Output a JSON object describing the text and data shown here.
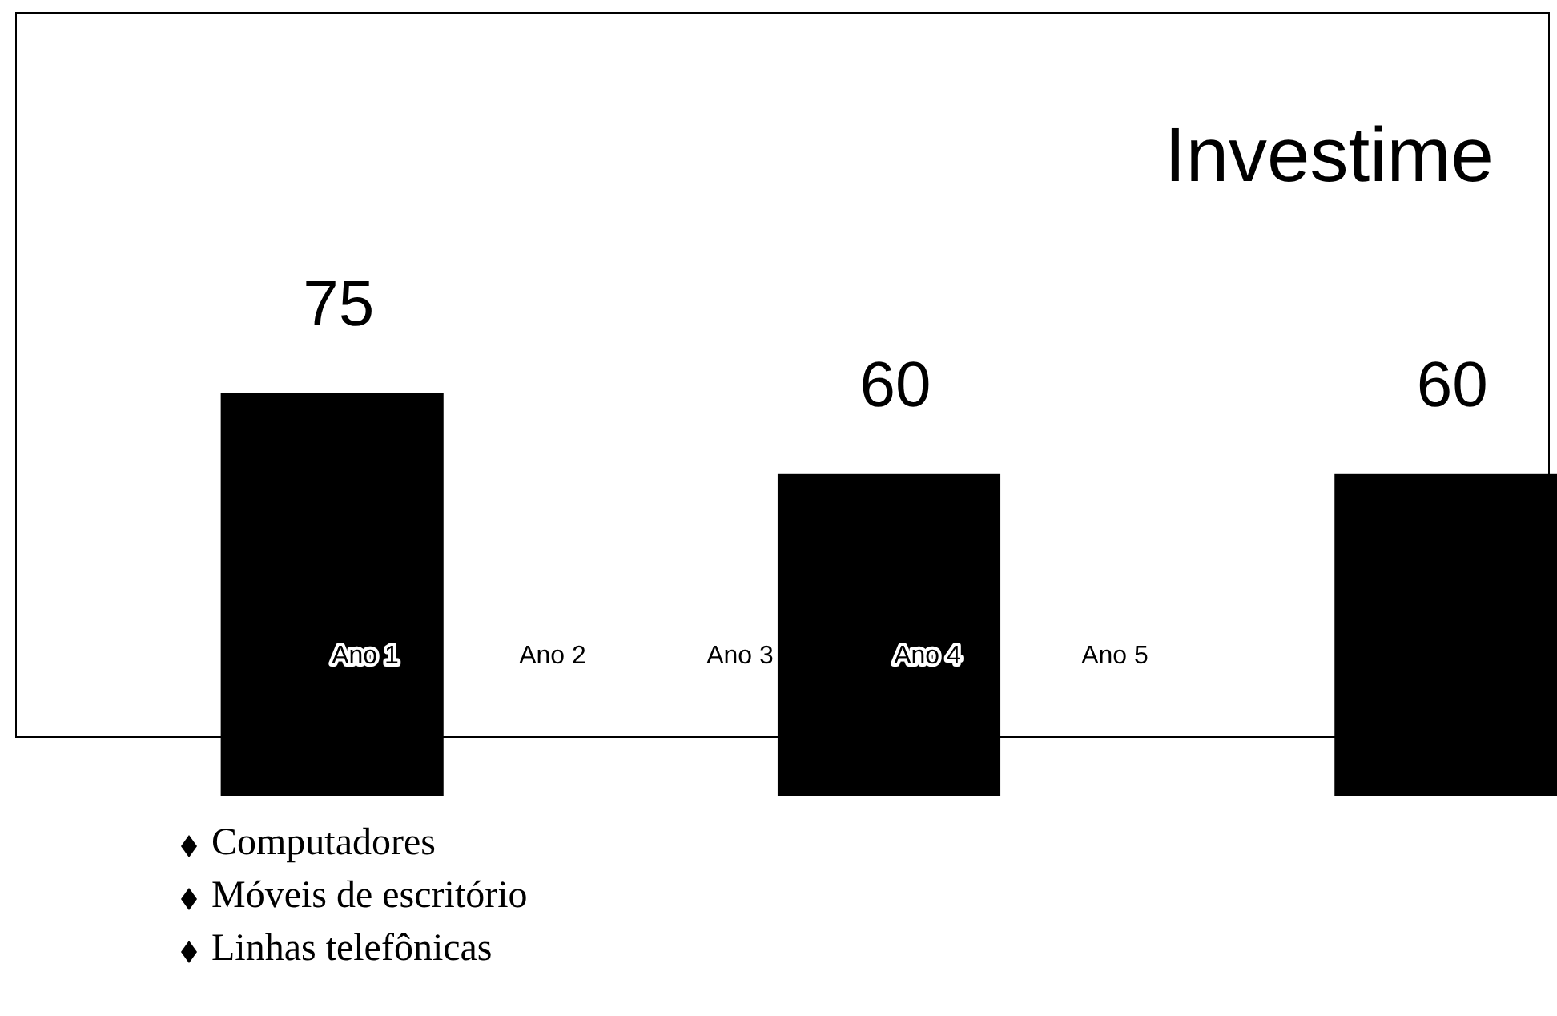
{
  "chart_data": {
    "type": "bar",
    "title": "Investime",
    "categories": [
      null,
      null,
      null
    ],
    "values": [
      75,
      60,
      60
    ],
    "color": "#000000",
    "data_labels": true,
    "annotations": [
      "Ano 1",
      "Ano 2",
      "Ano 3",
      "Ano 4",
      "Ano 5",
      "Computadores",
      "Móveis de escritório",
      "Linhas telefônicas"
    ]
  }
}
